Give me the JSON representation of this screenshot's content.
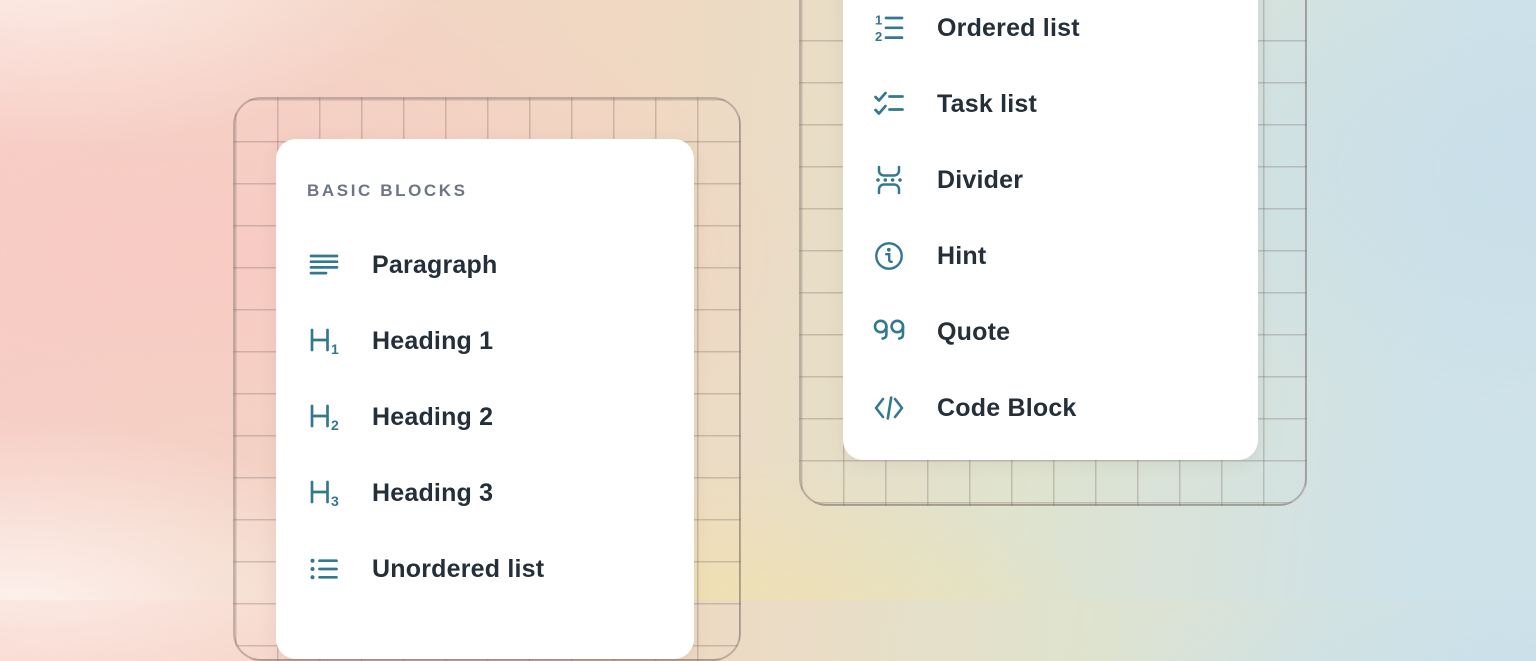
{
  "left_panel": {
    "header": "BASIC BLOCKS",
    "items": [
      {
        "label": "Paragraph",
        "icon": "paragraph-icon"
      },
      {
        "label": "Heading 1",
        "icon": "heading1-icon"
      },
      {
        "label": "Heading 2",
        "icon": "heading2-icon"
      },
      {
        "label": "Heading 3",
        "icon": "heading3-icon"
      },
      {
        "label": "Unordered list",
        "icon": "unordered-list-icon"
      }
    ]
  },
  "right_panel": {
    "items": [
      {
        "label": "Ordered list",
        "icon": "ordered-list-icon"
      },
      {
        "label": "Task list",
        "icon": "task-list-icon"
      },
      {
        "label": "Divider",
        "icon": "divider-icon"
      },
      {
        "label": "Hint",
        "icon": "hint-icon"
      },
      {
        "label": "Quote",
        "icon": "quote-icon"
      },
      {
        "label": "Code Block",
        "icon": "code-block-icon"
      }
    ]
  },
  "colors": {
    "icon": "#337891",
    "label": "#242f3a",
    "header": "#6e7681",
    "card_background": "#ffffff",
    "grid_line": "rgba(122,109,104,0.32)"
  }
}
